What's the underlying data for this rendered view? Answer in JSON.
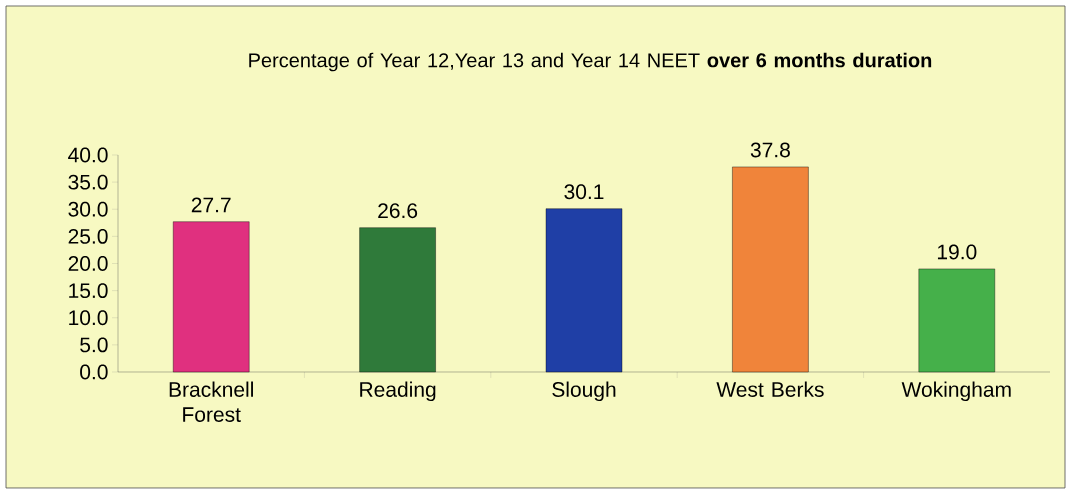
{
  "chart_data": {
    "type": "bar",
    "title": "Percentage of Year 12,Year 13 and Year 14 NEET **over 6 months duration**",
    "categories": [
      "Bracknell Forest",
      "Reading",
      "Slough",
      "West Berks",
      "Wokingham"
    ],
    "values": [
      27.7,
      26.6,
      30.1,
      37.8,
      19.0
    ],
    "value_labels": [
      "27.7",
      "26.6",
      "30.1",
      "37.8",
      "19.0"
    ],
    "colors": [
      "#e0307f",
      "#2f7a3a",
      "#1f3fa6",
      "#f0843a",
      "#45b04a"
    ],
    "ylim": [
      0,
      40
    ],
    "yticks": [
      {
        "value": 0,
        "label": "0.0"
      },
      {
        "value": 5,
        "label": "5.0"
      },
      {
        "value": 10,
        "label": "10.0"
      },
      {
        "value": 15,
        "label": "15.0"
      },
      {
        "value": 20,
        "label": "20.0"
      },
      {
        "value": 25,
        "label": "25.0"
      },
      {
        "value": 30,
        "label": "30.0"
      },
      {
        "value": 35,
        "label": "35.0"
      },
      {
        "value": 40,
        "label": "40.0"
      }
    ]
  }
}
